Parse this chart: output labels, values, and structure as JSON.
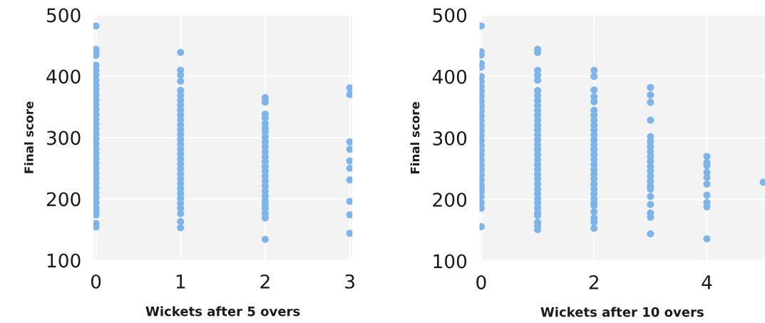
{
  "chart_data": [
    {
      "type": "scatter",
      "xlabel": "Wickets after 5 overs",
      "ylabel": "Final score",
      "xlim": [
        -0.03,
        3.03
      ],
      "ylim": [
        100,
        500
      ],
      "xticks": [
        0,
        1,
        2,
        3
      ],
      "yticks": [
        100,
        200,
        300,
        400,
        500
      ],
      "grid": true,
      "marker": "circle",
      "series": [
        {
          "color": "#7db4ea",
          "x": [
            0,
            0,
            0,
            0,
            0,
            0,
            0,
            0,
            0,
            0,
            0,
            0,
            0,
            0,
            0,
            0,
            0,
            0,
            0,
            0,
            0,
            0,
            0,
            0,
            0,
            0,
            0,
            0,
            0,
            0,
            0,
            0,
            0,
            0,
            0,
            0,
            0,
            0,
            1,
            1,
            1,
            1,
            1,
            1,
            1,
            1,
            1,
            1,
            1,
            1,
            1,
            1,
            1,
            1,
            1,
            1,
            1,
            1,
            1,
            1,
            1,
            1,
            1,
            1,
            1,
            1,
            1,
            1,
            1,
            1,
            2,
            2,
            2,
            2,
            2,
            2,
            2,
            2,
            2,
            2,
            2,
            2,
            2,
            2,
            2,
            2,
            2,
            2,
            2,
            2,
            2,
            2,
            2,
            2,
            2,
            2,
            3,
            3,
            3,
            3,
            3,
            3,
            3,
            3,
            3,
            3
          ],
          "values": [
            482,
            444,
            439,
            434,
            418,
            410,
            402,
            394,
            386,
            378,
            370,
            362,
            354,
            346,
            338,
            330,
            322,
            314,
            306,
            298,
            290,
            282,
            274,
            266,
            258,
            250,
            242,
            234,
            226,
            218,
            210,
            202,
            194,
            186,
            180,
            174,
            160,
            154,
            439,
            410,
            402,
            392,
            377,
            369,
            361,
            353,
            345,
            337,
            329,
            321,
            313,
            305,
            297,
            289,
            281,
            273,
            265,
            257,
            249,
            241,
            233,
            225,
            217,
            209,
            201,
            193,
            185,
            176,
            163,
            153,
            365,
            358,
            338,
            332,
            323,
            315,
            309,
            301,
            293,
            285,
            277,
            269,
            261,
            253,
            245,
            237,
            229,
            221,
            213,
            205,
            197,
            191,
            184,
            176,
            169,
            134,
            381,
            370,
            293,
            281,
            262,
            250,
            231,
            196,
            174,
            144
          ]
        }
      ]
    },
    {
      "type": "scatter",
      "xlabel": "Wickets after 10 overs",
      "ylabel": "Final score",
      "xlim": [
        -0.03,
        5.03
      ],
      "ylim": [
        100,
        500
      ],
      "xticks": [
        0,
        2,
        4
      ],
      "yticks": [
        100,
        200,
        300,
        400,
        500
      ],
      "grid": true,
      "marker": "circle",
      "series": [
        {
          "color": "#7db4ea",
          "x": [
            0,
            0,
            0,
            0,
            0,
            0,
            0,
            0,
            0,
            0,
            0,
            0,
            0,
            0,
            0,
            0,
            0,
            0,
            0,
            0,
            0,
            0,
            0,
            0,
            0,
            0,
            0,
            0,
            0,
            0,
            0,
            0,
            0,
            0,
            1,
            1,
            1,
            1,
            1,
            1,
            1,
            1,
            1,
            1,
            1,
            1,
            1,
            1,
            1,
            1,
            1,
            1,
            1,
            1,
            1,
            1,
            1,
            1,
            1,
            1,
            1,
            1,
            1,
            1,
            1,
            1,
            1,
            1,
            1,
            2,
            2,
            2,
            2,
            2,
            2,
            2,
            2,
            2,
            2,
            2,
            2,
            2,
            2,
            2,
            2,
            2,
            2,
            2,
            2,
            2,
            2,
            2,
            2,
            2,
            2,
            2,
            2,
            2,
            2,
            3,
            3,
            3,
            3,
            3,
            3,
            3,
            3,
            3,
            3,
            3,
            3,
            3,
            3,
            3,
            3,
            3,
            3,
            3,
            3,
            3,
            4,
            4,
            4,
            4,
            4,
            4,
            4,
            4,
            4,
            4,
            5
          ],
          "values": [
            482,
            440,
            435,
            421,
            415,
            400,
            392,
            384,
            376,
            368,
            360,
            352,
            344,
            336,
            328,
            320,
            312,
            304,
            296,
            288,
            280,
            272,
            264,
            256,
            248,
            240,
            232,
            224,
            218,
            213,
            205,
            195,
            186,
            156,
            444,
            439,
            410,
            402,
            394,
            377,
            369,
            361,
            353,
            345,
            337,
            329,
            321,
            313,
            305,
            297,
            289,
            281,
            273,
            265,
            257,
            249,
            241,
            233,
            225,
            217,
            209,
            201,
            194,
            186,
            178,
            174,
            163,
            157,
            151,
            410,
            400,
            378,
            367,
            359,
            345,
            337,
            329,
            321,
            313,
            305,
            297,
            289,
            281,
            273,
            265,
            257,
            249,
            241,
            233,
            225,
            217,
            209,
            201,
            194,
            190,
            180,
            170,
            163,
            153,
            382,
            370,
            358,
            329,
            302,
            294,
            286,
            278,
            270,
            262,
            254,
            246,
            238,
            230,
            222,
            217,
            205,
            192,
            178,
            171,
            144,
            270,
            260,
            255,
            244,
            236,
            225,
            207,
            195,
            188,
            136,
            228
          ]
        }
      ]
    }
  ]
}
